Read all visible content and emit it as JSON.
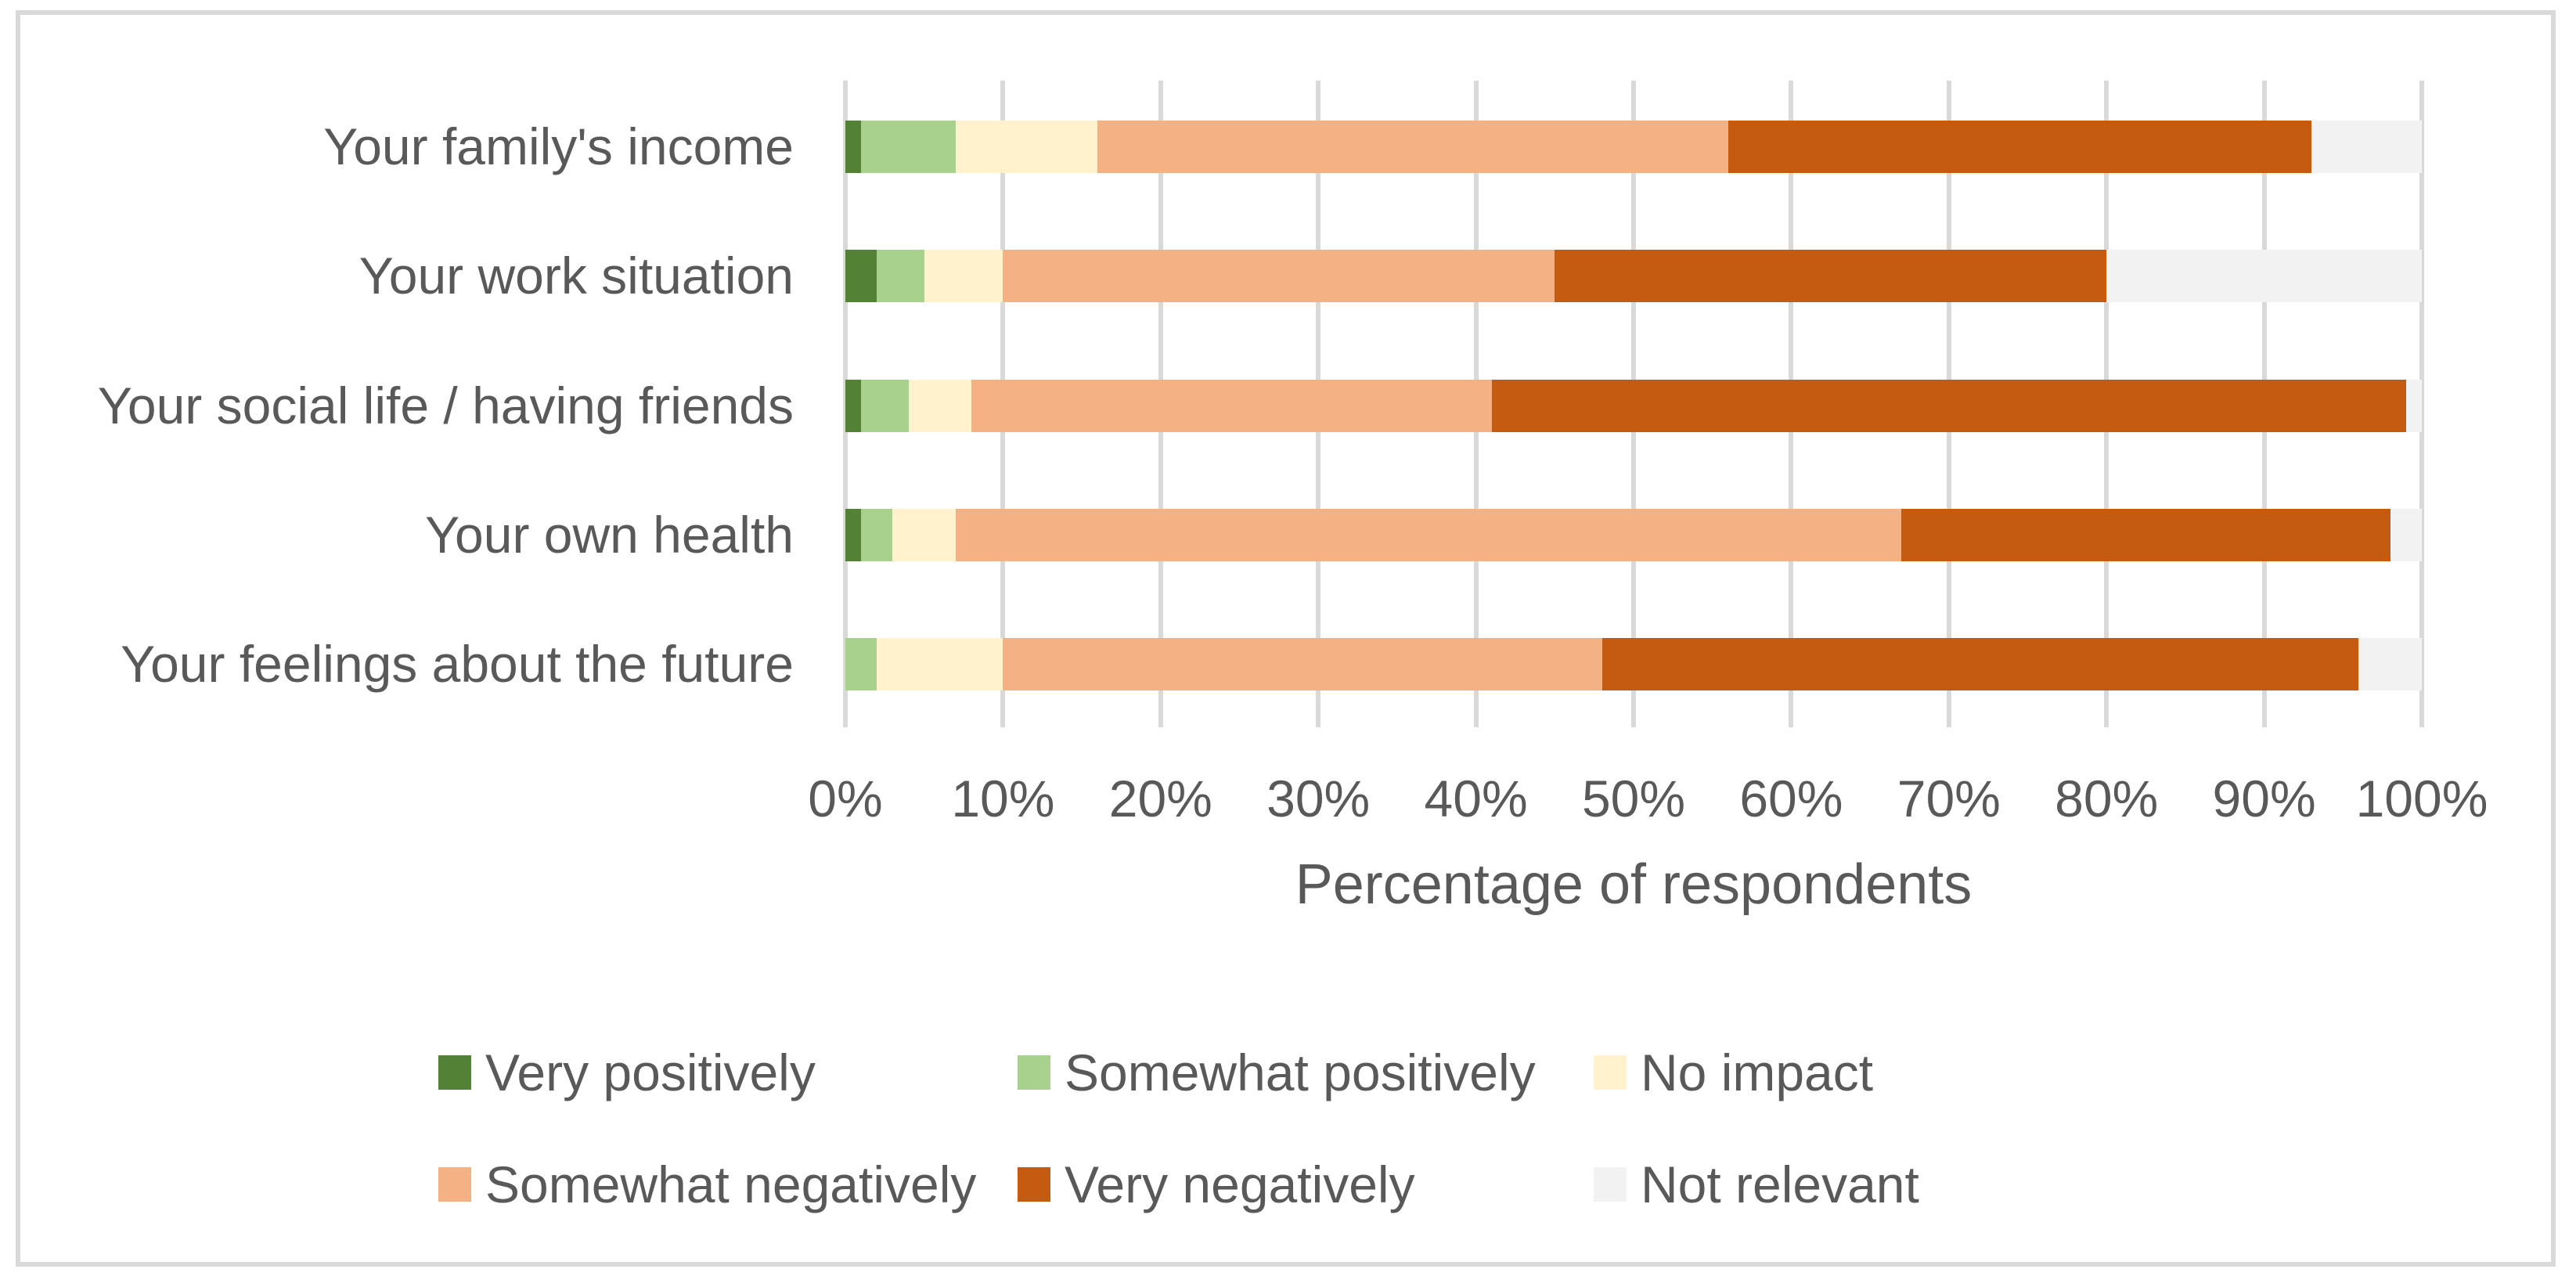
{
  "chart_data": {
    "type": "bar",
    "orientation": "horizontal-stacked",
    "title": "",
    "xlabel": "Percentage of respondents",
    "ylabel": "",
    "xlim": [
      0,
      100
    ],
    "grid": "vertical",
    "legend_position": "bottom",
    "x_ticks": [
      "0%",
      "10%",
      "20%",
      "30%",
      "40%",
      "50%",
      "60%",
      "70%",
      "80%",
      "90%",
      "100%"
    ],
    "categories": [
      "Your family's income",
      "Your work situation",
      "Your social life / having friends",
      "Your own health",
      "Your feelings about the future"
    ],
    "series": [
      {
        "name": "Very positively",
        "color": "#538135",
        "values": [
          1,
          2,
          1,
          1,
          0
        ]
      },
      {
        "name": "Somewhat positively",
        "color": "#a9d18e",
        "values": [
          6,
          3,
          3,
          2,
          2
        ]
      },
      {
        "name": "No impact",
        "color": "#fff2cc",
        "values": [
          9,
          5,
          4,
          4,
          8
        ]
      },
      {
        "name": "Somewhat negatively",
        "color": "#f4b183",
        "values": [
          40,
          35,
          33,
          60,
          38
        ]
      },
      {
        "name": "Very negatively",
        "color": "#c55a11",
        "values": [
          37,
          35,
          58,
          31,
          48
        ]
      },
      {
        "name": "Not relevant",
        "color": "#f2f2f2",
        "values": [
          7,
          20,
          1,
          2,
          4
        ]
      }
    ]
  },
  "style": {
    "gridline_color": "#d9d9d9",
    "frame_border_color": "#d9d9d9",
    "text_color": "#595959",
    "background": "#ffffff"
  }
}
